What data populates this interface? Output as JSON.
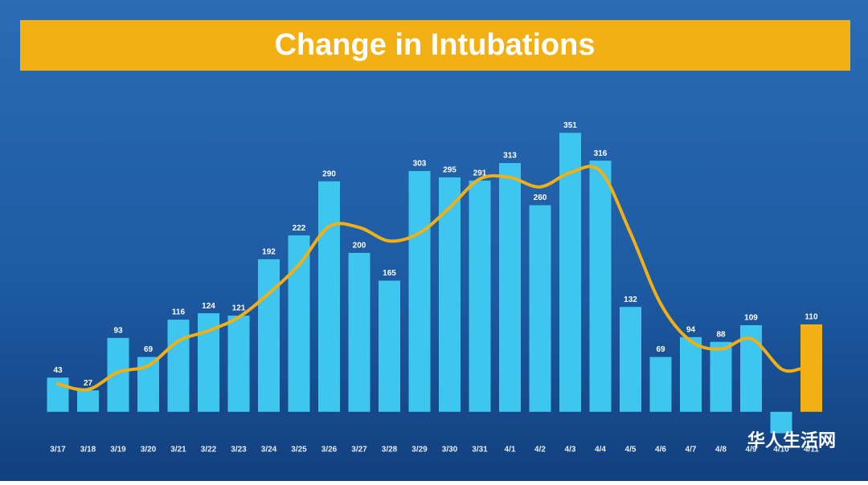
{
  "chart_data": {
    "type": "bar",
    "title": "Change in Intubations",
    "categories": [
      "3/17",
      "3/18",
      "3/19",
      "3/20",
      "3/21",
      "3/22",
      "3/23",
      "3/24",
      "3/25",
      "3/26",
      "3/27",
      "3/28",
      "3/29",
      "3/30",
      "3/31",
      "4/1",
      "4/2",
      "4/3",
      "4/4",
      "4/5",
      "4/6",
      "4/7",
      "4/8",
      "4/9",
      "4/10",
      "4/11"
    ],
    "values": [
      43,
      27,
      93,
      69,
      116,
      124,
      121,
      192,
      222,
      290,
      200,
      165,
      303,
      295,
      291,
      313,
      260,
      351,
      316,
      132,
      69,
      94,
      88,
      109,
      -27,
      110
    ],
    "value_labels": [
      "43",
      "27",
      "93",
      "69",
      "116",
      "124",
      "121",
      "192",
      "222",
      "290",
      "200",
      "165",
      "303",
      "295",
      "291",
      "313",
      "260",
      "351",
      "316",
      "132",
      "69",
      "94",
      "88",
      "109",
      null,
      "110"
    ],
    "colors": [
      "#3ec6ee",
      "#3ec6ee",
      "#3ec6ee",
      "#3ec6ee",
      "#3ec6ee",
      "#3ec6ee",
      "#3ec6ee",
      "#3ec6ee",
      "#3ec6ee",
      "#3ec6ee",
      "#3ec6ee",
      "#3ec6ee",
      "#3ec6ee",
      "#3ec6ee",
      "#3ec6ee",
      "#3ec6ee",
      "#3ec6ee",
      "#3ec6ee",
      "#3ec6ee",
      "#3ec6ee",
      "#3ec6ee",
      "#3ec6ee",
      "#3ec6ee",
      "#3ec6ee",
      "#3ec6ee",
      "#f2b015"
    ],
    "trend": {
      "color": "#f2b015",
      "values": [
        35,
        28,
        50,
        58,
        89,
        102,
        119,
        149,
        185,
        233,
        232,
        215,
        225,
        257,
        293,
        295,
        283,
        301,
        303,
        225,
        136,
        89,
        79,
        92,
        54,
        54
      ]
    },
    "ylim": [
      -80,
      400
    ],
    "watermark": "华人生活网"
  }
}
